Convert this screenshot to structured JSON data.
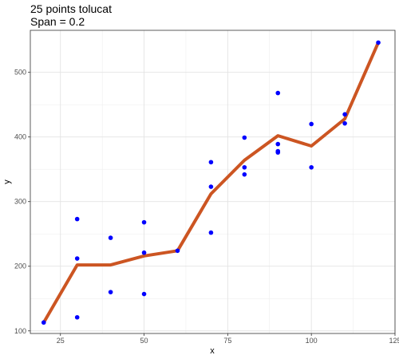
{
  "chart_data": {
    "type": "scatter",
    "title": "25 points tolucat",
    "subtitle": "Span = 0.2",
    "xlabel": "x",
    "ylabel": "y",
    "xlim": [
      16,
      125
    ],
    "ylim": [
      96,
      565
    ],
    "x_ticks": [
      25,
      50,
      75,
      100,
      125
    ],
    "y_ticks": [
      100,
      200,
      300,
      400,
      500
    ],
    "grid": true,
    "legend": "none",
    "point_color": "#0000ff",
    "line_color": "#cc5522",
    "points": [
      {
        "x": 20,
        "y": 113
      },
      {
        "x": 30,
        "y": 273
      },
      {
        "x": 30,
        "y": 212
      },
      {
        "x": 30,
        "y": 121
      },
      {
        "x": 40,
        "y": 244
      },
      {
        "x": 40,
        "y": 160
      },
      {
        "x": 50,
        "y": 268
      },
      {
        "x": 50,
        "y": 221
      },
      {
        "x": 50,
        "y": 157
      },
      {
        "x": 60,
        "y": 224
      },
      {
        "x": 70,
        "y": 361
      },
      {
        "x": 70,
        "y": 323
      },
      {
        "x": 70,
        "y": 252
      },
      {
        "x": 80,
        "y": 399
      },
      {
        "x": 80,
        "y": 353
      },
      {
        "x": 80,
        "y": 342
      },
      {
        "x": 90,
        "y": 468
      },
      {
        "x": 90,
        "y": 389
      },
      {
        "x": 90,
        "y": 378
      },
      {
        "x": 90,
        "y": 376
      },
      {
        "x": 100,
        "y": 420
      },
      {
        "x": 100,
        "y": 353
      },
      {
        "x": 110,
        "y": 435
      },
      {
        "x": 110,
        "y": 421
      },
      {
        "x": 120,
        "y": 546
      }
    ],
    "smooth_line": {
      "x": [
        20,
        30,
        40,
        50,
        60,
        70,
        80,
        90,
        100,
        110,
        120
      ],
      "y": [
        113,
        202,
        202,
        216,
        224,
        312,
        364,
        402,
        386,
        428,
        546
      ]
    }
  }
}
